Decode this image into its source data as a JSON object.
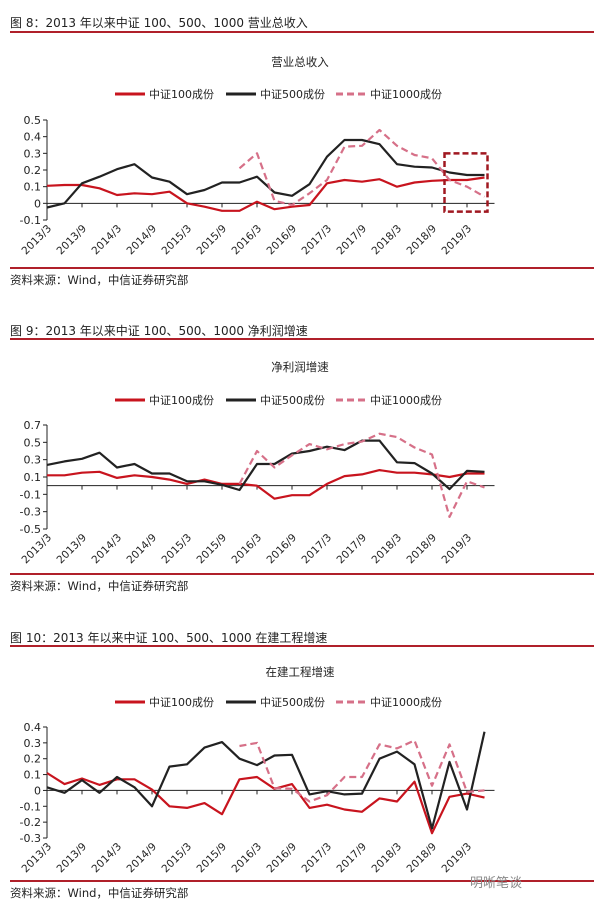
{
  "colors": {
    "s100": "#c8141e",
    "s500": "#222222",
    "s1000": "#d67088",
    "rule": "#b0202a"
  },
  "source_label": "资料来源：Wind，中信证券研究部",
  "watermark": "明晰笔谈",
  "chart_data": [
    {
      "type": "line",
      "header": "图 8：2013 年以来中证 100、500、1000 营业总收入",
      "title": "营业总收入",
      "x": [
        "2013/3",
        "2013/6",
        "2013/9",
        "2013/12",
        "2014/3",
        "2014/6",
        "2014/9",
        "2014/12",
        "2015/3",
        "2015/6",
        "2015/9",
        "2015/12",
        "2016/3",
        "2016/6",
        "2016/9",
        "2016/12",
        "2017/3",
        "2017/6",
        "2017/9",
        "2017/12",
        "2018/3",
        "2018/6",
        "2018/9",
        "2018/12",
        "2019/3",
        "2019/6"
      ],
      "xticks": [
        "2013/3",
        "2013/9",
        "2014/3",
        "2014/9",
        "2015/3",
        "2015/9",
        "2016/3",
        "2016/9",
        "2017/3",
        "2017/9",
        "2018/3",
        "2018/9",
        "2019/3"
      ],
      "ylim": [
        -0.1,
        0.5
      ],
      "yticks": [
        "0.5",
        "0.4",
        "0.3",
        "0.2",
        "0.1",
        "0",
        "-0.1"
      ],
      "ytick_values": [
        0.5,
        0.4,
        0.3,
        0.2,
        0.1,
        0,
        -0.1
      ],
      "series": [
        {
          "name": "中证100成份",
          "values": [
            0.105,
            0.11,
            0.11,
            0.09,
            0.05,
            0.06,
            0.055,
            0.07,
            0.0,
            -0.02,
            -0.045,
            -0.045,
            0.01,
            -0.035,
            -0.02,
            -0.01,
            0.12,
            0.14,
            0.13,
            0.145,
            0.1,
            0.125,
            0.135,
            0.14,
            0.14,
            0.155
          ]
        },
        {
          "name": "中证500成份",
          "values": [
            -0.025,
            0.0,
            0.12,
            0.16,
            0.205,
            0.235,
            0.155,
            0.13,
            0.055,
            0.08,
            0.125,
            0.125,
            0.16,
            0.065,
            0.045,
            0.115,
            0.28,
            0.38,
            0.38,
            0.355,
            0.235,
            0.22,
            0.215,
            0.185,
            0.17,
            0.17
          ]
        },
        {
          "name": "中证1000成份",
          "values": [
            null,
            null,
            null,
            null,
            null,
            null,
            null,
            null,
            null,
            null,
            null,
            0.21,
            0.3,
            0.015,
            -0.01,
            0.06,
            0.14,
            0.34,
            0.345,
            0.44,
            0.345,
            0.29,
            0.27,
            0.14,
            0.1,
            0.04
          ]
        }
      ],
      "annotation": {
        "type": "dashed-box",
        "x_from": "2018/12",
        "x_to": "2019/6",
        "y_range": [
          -0.05,
          0.3
        ]
      }
    },
    {
      "type": "line",
      "header": "图 9：2013 年以来中证 100、500、1000 净利润增速",
      "title": "净利润增速",
      "x": [
        "2013/3",
        "2013/6",
        "2013/9",
        "2013/12",
        "2014/3",
        "2014/6",
        "2014/9",
        "2014/12",
        "2015/3",
        "2015/6",
        "2015/9",
        "2015/12",
        "2016/3",
        "2016/6",
        "2016/9",
        "2016/12",
        "2017/3",
        "2017/6",
        "2017/9",
        "2017/12",
        "2018/3",
        "2018/6",
        "2018/9",
        "2018/12",
        "2019/3",
        "2019/6"
      ],
      "xticks": [
        "2013/3",
        "2013/9",
        "2014/3",
        "2014/9",
        "2015/3",
        "2015/9",
        "2016/3",
        "2016/9",
        "2017/3",
        "2017/9",
        "2018/3",
        "2018/9",
        "2019/3"
      ],
      "ylim": [
        -0.5,
        0.7
      ],
      "yticks": [
        "0.7",
        "0.5",
        "0.3",
        "0.1",
        "-0.1",
        "-0.3",
        "-0.5"
      ],
      "ytick_values": [
        0.7,
        0.5,
        0.3,
        0.1,
        -0.1,
        -0.3,
        -0.5
      ],
      "series": [
        {
          "name": "中证100成份",
          "values": [
            0.12,
            0.12,
            0.15,
            0.16,
            0.09,
            0.12,
            0.1,
            0.07,
            0.02,
            0.07,
            0.02,
            0.02,
            0.0,
            -0.15,
            -0.11,
            -0.11,
            0.02,
            0.11,
            0.13,
            0.18,
            0.15,
            0.15,
            0.13,
            0.1,
            0.14,
            0.14
          ]
        },
        {
          "name": "中证500成份",
          "values": [
            0.24,
            0.28,
            0.31,
            0.38,
            0.21,
            0.25,
            0.14,
            0.14,
            0.05,
            0.05,
            0.01,
            -0.05,
            0.25,
            0.25,
            0.37,
            0.4,
            0.45,
            0.41,
            0.52,
            0.52,
            0.27,
            0.26,
            0.14,
            -0.04,
            0.17,
            0.16
          ]
        },
        {
          "name": "中证1000成份",
          "values": [
            null,
            null,
            null,
            null,
            null,
            null,
            null,
            null,
            null,
            null,
            null,
            0.02,
            0.4,
            0.21,
            0.35,
            0.48,
            0.42,
            0.48,
            0.51,
            0.6,
            0.56,
            0.44,
            0.36,
            -0.36,
            0.05,
            -0.02
          ]
        }
      ]
    },
    {
      "type": "line",
      "header": "图 10：2013 年以来中证 100、500、1000 在建工程增速",
      "title": "在建工程增速",
      "x": [
        "2013/3",
        "2013/6",
        "2013/9",
        "2013/12",
        "2014/3",
        "2014/6",
        "2014/9",
        "2014/12",
        "2015/3",
        "2015/6",
        "2015/9",
        "2015/12",
        "2016/3",
        "2016/6",
        "2016/9",
        "2016/12",
        "2017/3",
        "2017/6",
        "2017/9",
        "2017/12",
        "2018/3",
        "2018/6",
        "2018/9",
        "2018/12",
        "2019/3",
        "2019/6"
      ],
      "xticks": [
        "2013/3",
        "2013/9",
        "2014/3",
        "2014/9",
        "2015/3",
        "2015/9",
        "2016/3",
        "2016/9",
        "2017/3",
        "2017/9",
        "2018/3",
        "2018/9",
        "2019/3"
      ],
      "ylim": [
        -0.3,
        0.4
      ],
      "yticks": [
        "0.4",
        "0.3",
        "0.2",
        "0.1",
        "0",
        "-0.1",
        "-0.2",
        "-0.3"
      ],
      "ytick_values": [
        0.4,
        0.3,
        0.2,
        0.1,
        0,
        -0.1,
        -0.2,
        -0.3
      ],
      "series": [
        {
          "name": "中证100成份",
          "values": [
            0.11,
            0.04,
            0.075,
            0.035,
            0.07,
            0.07,
            0.005,
            -0.1,
            -0.11,
            -0.08,
            -0.15,
            0.07,
            0.085,
            0.01,
            0.04,
            -0.11,
            -0.09,
            -0.12,
            -0.135,
            -0.05,
            -0.07,
            0.055,
            -0.27,
            -0.04,
            -0.02,
            -0.045
          ]
        },
        {
          "name": "中证500成份",
          "values": [
            0.02,
            -0.015,
            0.065,
            -0.015,
            0.085,
            0.02,
            -0.1,
            0.15,
            0.165,
            0.27,
            0.305,
            0.2,
            0.16,
            0.22,
            0.225,
            -0.025,
            -0.005,
            -0.025,
            -0.02,
            0.2,
            0.245,
            0.165,
            -0.24,
            0.18,
            -0.12,
            0.37
          ]
        },
        {
          "name": "中证1000成份",
          "values": [
            null,
            null,
            null,
            null,
            null,
            null,
            null,
            null,
            null,
            null,
            null,
            0.28,
            0.3,
            0.015,
            0.01,
            -0.07,
            -0.03,
            0.085,
            0.085,
            0.29,
            0.265,
            0.315,
            0.03,
            0.29,
            -0.01,
            0.0
          ]
        }
      ]
    }
  ]
}
